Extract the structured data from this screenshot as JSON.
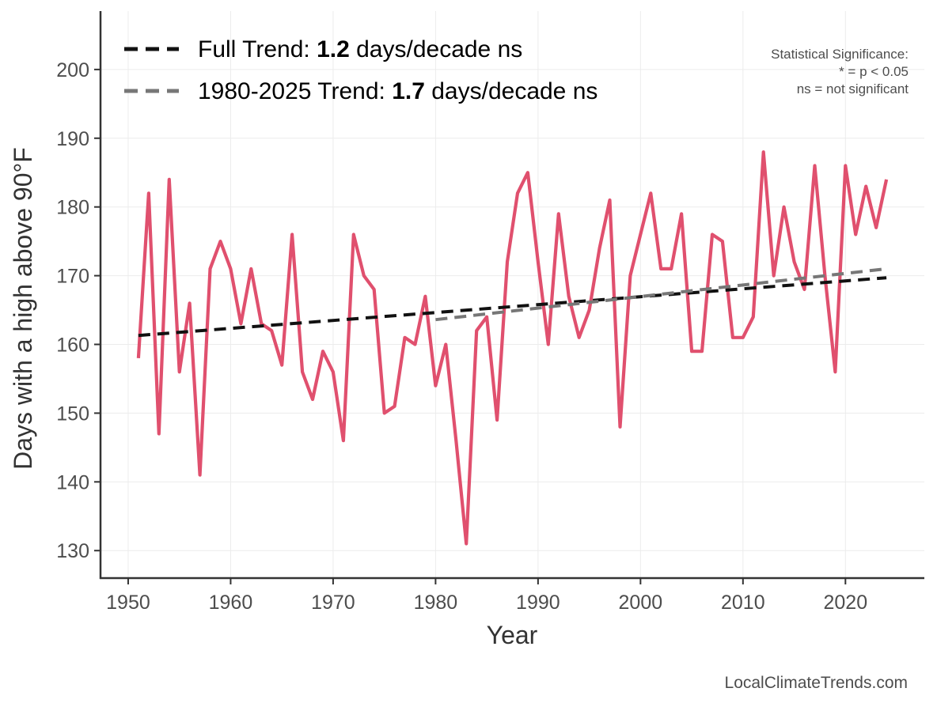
{
  "chart_data": {
    "type": "line",
    "xlabel": "Year",
    "ylabel": "Days with a high above 90°F",
    "xlim": [
      1947.3,
      2027.7
    ],
    "ylim": [
      126,
      208.5
    ],
    "x_ticks": [
      1950,
      1960,
      1970,
      1980,
      1990,
      2000,
      2010,
      2020
    ],
    "y_ticks": [
      130,
      140,
      150,
      160,
      170,
      180,
      190,
      200
    ],
    "grid": true,
    "series": [
      {
        "color": "#e0506e",
        "x": [
          1951,
          1952,
          1953,
          1954,
          1955,
          1956,
          1957,
          1958,
          1959,
          1960,
          1961,
          1962,
          1963,
          1964,
          1965,
          1966,
          1967,
          1968,
          1969,
          1970,
          1971,
          1972,
          1973,
          1974,
          1975,
          1976,
          1977,
          1978,
          1979,
          1980,
          1981,
          1982,
          1983,
          1984,
          1985,
          1986,
          1987,
          1988,
          1989,
          1990,
          1991,
          1992,
          1993,
          1994,
          1995,
          1996,
          1997,
          1998,
          1999,
          2000,
          2001,
          2002,
          2003,
          2004,
          2005,
          2006,
          2007,
          2008,
          2009,
          2010,
          2011,
          2012,
          2013,
          2014,
          2015,
          2016,
          2017,
          2018,
          2019,
          2020,
          2021,
          2022,
          2023,
          2024
        ],
        "values": [
          158,
          182,
          147,
          184,
          156,
          166,
          141,
          171,
          175,
          171,
          163,
          171,
          163,
          162,
          157,
          176,
          156,
          152,
          159,
          156,
          146,
          176,
          170,
          168,
          150,
          151,
          161,
          160,
          167,
          154,
          160,
          146,
          131,
          162,
          164,
          149,
          172,
          182,
          185,
          172,
          160,
          179,
          167,
          161,
          165,
          174,
          181,
          148,
          170,
          176,
          182,
          171,
          171,
          179,
          159,
          159,
          176,
          175,
          161,
          161,
          164,
          188,
          170,
          180,
          172,
          168,
          186,
          170,
          156,
          186,
          176,
          183,
          177,
          184
        ]
      },
      {
        "color": "#111111",
        "dashed": true,
        "x": [
          1951,
          2024
        ],
        "values": [
          161.3,
          169.7
        ]
      },
      {
        "color": "#777777",
        "dashed": true,
        "x": [
          1980,
          2024
        ],
        "values": [
          163.6,
          171.0
        ]
      }
    ],
    "legend": {
      "position": "top-left",
      "entries": [
        {
          "prefix": "Full Trend: ",
          "value": "1.2",
          "suffix": " days/decade ns",
          "color": "#111111"
        },
        {
          "prefix": "1980-2025 Trend: ",
          "value": "1.7",
          "suffix": " days/decade ns",
          "color": "#777777"
        }
      ]
    },
    "annotations": {
      "significance": [
        "Statistical Significance:",
        "* = p < 0.05",
        "ns = not significant"
      ],
      "credit": "LocalClimateTrends.com"
    }
  }
}
